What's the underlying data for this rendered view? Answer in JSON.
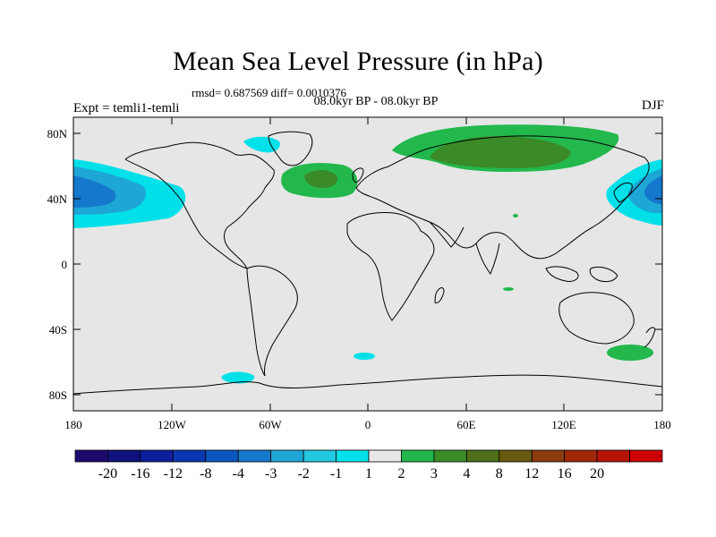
{
  "title": "Mean Sea Level Pressure (in hPa)",
  "stats": "rmsd= 0.687569 diff= 0.0010376",
  "period": "08.0kyr BP - 08.0kyr BP",
  "experiment": "Expt = temli1-temli",
  "season": "DJF",
  "lat_labels": [
    "80N",
    "40N",
    "0",
    "40S",
    "80S"
  ],
  "lon_labels": [
    "180",
    "120W",
    "60W",
    "0",
    "60E",
    "120E",
    "180"
  ],
  "colorbar": {
    "labels": [
      "-20",
      "-16",
      "-12",
      "-8",
      "-4",
      "-3",
      "-2",
      "-1",
      "1",
      "2",
      "3",
      "4",
      "8",
      "12",
      "16",
      "20"
    ],
    "colors": [
      "#1e0a6e",
      "#12127e",
      "#0d1f9a",
      "#0a36b0",
      "#0d55be",
      "#1478cc",
      "#1ea6d6",
      "#22c8e0",
      "#00e0e8",
      "#e6e6e6",
      "#22b84c",
      "#3a8a28",
      "#4e6e18",
      "#6a5a10",
      "#8a3c0a",
      "#a02808",
      "#b81406",
      "#cc0000"
    ]
  },
  "chart_data": {
    "type": "heatmap",
    "title": "Mean Sea Level Pressure (in hPa)",
    "units": "hPa",
    "xrange": [
      -180,
      180
    ],
    "yrange": [
      -90,
      90
    ],
    "levels": [
      -20,
      -16,
      -12,
      -8,
      -4,
      -3,
      -2,
      -1,
      1,
      2,
      3,
      4,
      8,
      12,
      16,
      20
    ],
    "anomalies": [
      {
        "region": "North Pacific (west of dateline edge)",
        "lon": -170,
        "lat": 42,
        "range": "-4 to -1"
      },
      {
        "region": "North Pacific (east of Asia)",
        "lon": 170,
        "lat": 42,
        "range": "-4 to -1"
      },
      {
        "region": "Hudson Bay / Baffin",
        "lon": -78,
        "lat": 68,
        "range": "-2 to -1"
      },
      {
        "region": "North Atlantic",
        "lon": -30,
        "lat": 50,
        "range": "1 to 3"
      },
      {
        "region": "Northern Eurasia / Siberia",
        "lon": 75,
        "lat": 65,
        "range": "1 to 3"
      },
      {
        "region": "South Pacific (SE of New Zealand)",
        "lon": 162,
        "lat": -55,
        "range": "1 to 2"
      },
      {
        "region": "Southern Ocean (Drake Passage)",
        "lon": -78,
        "lat": -70,
        "range": "-2 to -1"
      },
      {
        "region": "South Atlantic",
        "lon": -2,
        "lat": -57,
        "range": "-2 to -1"
      }
    ]
  }
}
